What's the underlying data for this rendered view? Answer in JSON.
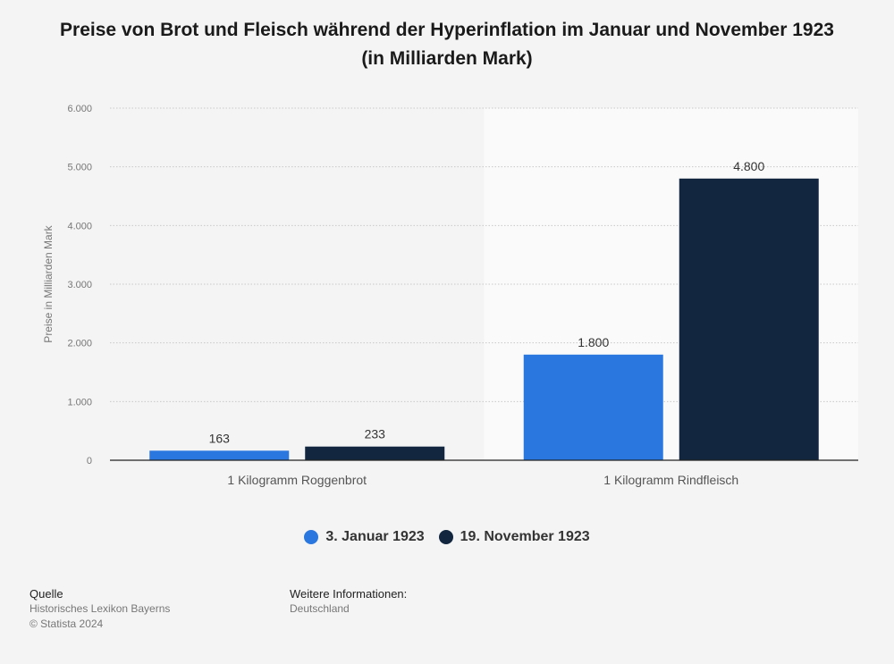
{
  "title": "Preise von Brot und Fleisch während der Hyperinflation im Januar und November 1923 (in Milliarden Mark)",
  "colors": {
    "series1": "#2a77df",
    "series2": "#12273f",
    "axis": "#222222",
    "grid": "#c8c8c8",
    "tick": "#777777",
    "highlight": "#fafafa"
  },
  "legend": [
    "3. Januar 1923",
    "19. November 1923"
  ],
  "chart_data": {
    "type": "bar",
    "title": "Preise von Brot und Fleisch während der Hyperinflation im Januar und November 1923 (in Milliarden Mark)",
    "xlabel": "",
    "ylabel": "Preise in Milliarden Mark",
    "ylim": [
      0,
      6000
    ],
    "yticks": [
      0,
      1000,
      2000,
      3000,
      4000,
      5000,
      6000
    ],
    "ytick_labels": [
      "0",
      "1.000",
      "2.000",
      "3.000",
      "4.000",
      "5.000",
      "6.000"
    ],
    "categories": [
      "1 Kilogramm Roggenbrot",
      "1 Kilogramm Rindfleisch"
    ],
    "series": [
      {
        "name": "3. Januar 1923",
        "values": [
          163,
          1800
        ],
        "labels": [
          "163",
          "1.800"
        ]
      },
      {
        "name": "19. November 1923",
        "values": [
          233,
          4800
        ],
        "labels": [
          "233",
          "4.800"
        ]
      }
    ],
    "grid": true,
    "legend_position": "bottom"
  },
  "footer": {
    "source_heading": "Quelle",
    "source_lines": [
      "Historisches Lexikon Bayerns",
      "© Statista 2024"
    ],
    "info_heading": "Weitere Informationen:",
    "info_lines": [
      "Deutschland"
    ]
  }
}
